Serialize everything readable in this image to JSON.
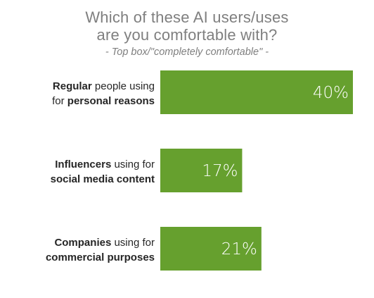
{
  "chart_data": {
    "type": "bar",
    "orientation": "horizontal",
    "title_lines": [
      "Which of these AI users/uses",
      "are you comfortable with?"
    ],
    "subtitle": "- Top box/\"completely comfortable\" -",
    "categories": [
      [
        {
          "text": "Regular",
          "bold": true
        },
        {
          "text": " people using",
          "bold": false
        },
        {
          "text": "|"
        },
        {
          "text": "for ",
          "bold": false
        },
        {
          "text": "personal reasons",
          "bold": true
        }
      ],
      [
        {
          "text": "Influencers",
          "bold": true
        },
        {
          "text": " using for",
          "bold": false
        },
        {
          "text": "|"
        },
        {
          "text": "social media content",
          "bold": true
        }
      ],
      [
        {
          "text": "Companies",
          "bold": true
        },
        {
          "text": " using for",
          "bold": false
        },
        {
          "text": "|"
        },
        {
          "text": "commercial purposes",
          "bold": true
        }
      ]
    ],
    "values": [
      40,
      17,
      21
    ],
    "value_labels": [
      "40%",
      "17%",
      "21%"
    ],
    "xlim": [
      0,
      40
    ],
    "grid": false,
    "legend": "none",
    "bar_color": "#66a02e"
  }
}
